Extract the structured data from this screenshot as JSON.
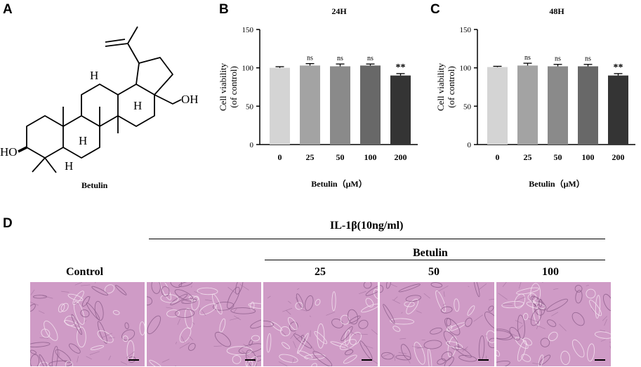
{
  "panels": {
    "a": "A",
    "b": "B",
    "c": "C",
    "d": "D"
  },
  "structure": {
    "name": "Betulin",
    "labels": {
      "ho": "HO",
      "oh": "OH",
      "h1": "H",
      "h2": "H",
      "h3": "H",
      "h4": "H"
    }
  },
  "chart_data": [
    {
      "type": "bar",
      "title": "24H",
      "categories": [
        "0",
        "25",
        "50",
        "100",
        "200"
      ],
      "values": [
        100,
        103,
        102,
        103,
        90
      ],
      "errors": [
        1.5,
        2.5,
        3,
        2,
        2.5
      ],
      "annotations": [
        "",
        "ns",
        "ns",
        "ns",
        "**"
      ],
      "ylabel_line1": "Cell viability",
      "ylabel_line2": "(of control)",
      "xlabel": "Betulin（μM）",
      "ylim": [
        0,
        150
      ],
      "yticks": [
        "0",
        "50",
        "100",
        "150"
      ],
      "colors": [
        "#d4d4d4",
        "#a3a3a3",
        "#8a8a8a",
        "#686868",
        "#343434"
      ]
    },
    {
      "type": "bar",
      "title": "48H",
      "categories": [
        "0",
        "25",
        "50",
        "100",
        "200"
      ],
      "values": [
        101,
        103,
        102,
        102,
        90
      ],
      "errors": [
        1,
        3,
        2.5,
        2.5,
        2.5
      ],
      "annotations": [
        "",
        "ns",
        "ns",
        "ns",
        "**"
      ],
      "ylabel_line1": "Cell viability",
      "ylabel_line2": "(of control)",
      "xlabel": "Betulin（μM）",
      "ylim": [
        0,
        150
      ],
      "yticks": [
        "0",
        "50",
        "100",
        "150"
      ],
      "colors": [
        "#d4d4d4",
        "#a3a3a3",
        "#8a8a8a",
        "#686868",
        "#343434"
      ]
    }
  ],
  "panel_d": {
    "il1b_label": "IL-1β(10ng/ml)",
    "betulin_label": "Betulin",
    "control_label": "Control",
    "dose_labels": [
      "25",
      "50",
      "100"
    ]
  }
}
